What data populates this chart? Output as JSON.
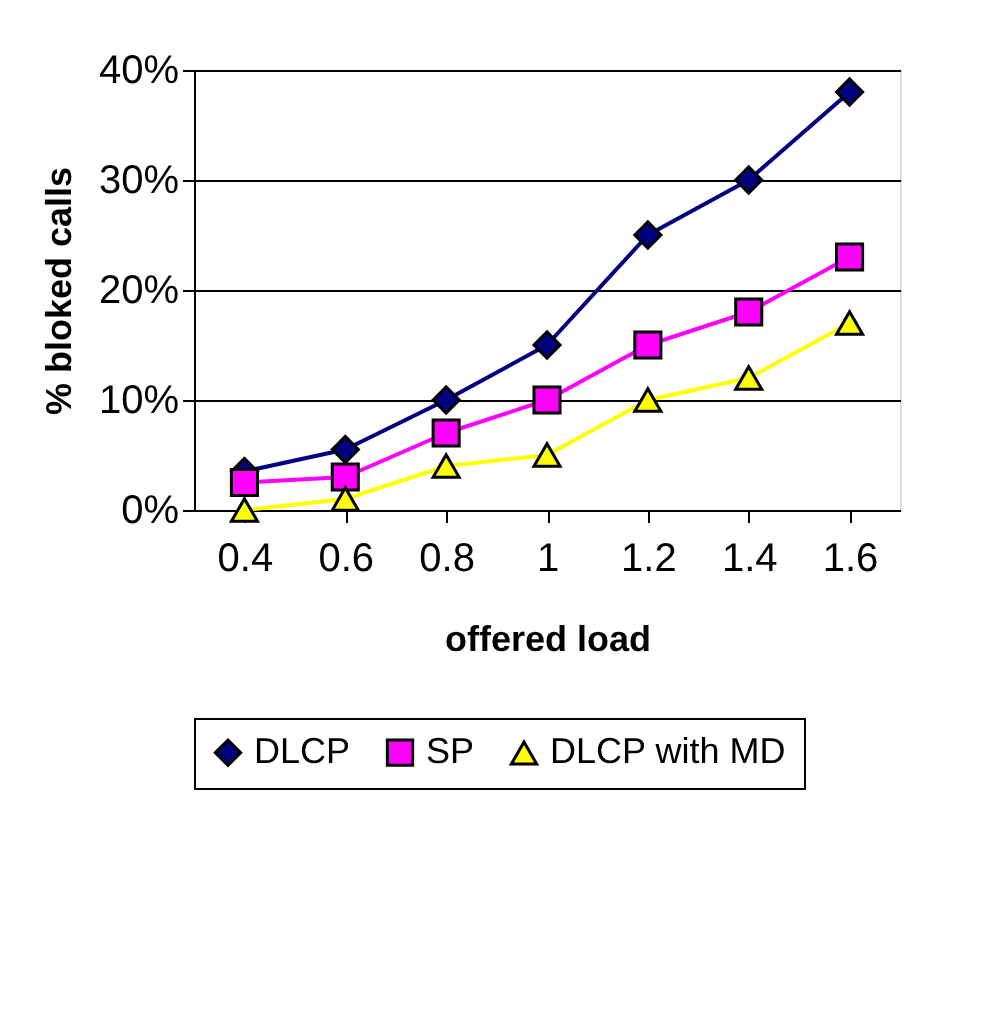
{
  "chart_data": {
    "type": "line",
    "xlabel": "offered load",
    "ylabel": "% bloked calls",
    "categories": [
      "0.4",
      "0.6",
      "0.8",
      "1",
      "1.2",
      "1.4",
      "1.6"
    ],
    "series": [
      {
        "name": "DLCP",
        "color": "#000080",
        "marker": "diamond",
        "values": [
          3.5,
          5.5,
          10,
          15,
          25,
          30,
          38
        ]
      },
      {
        "name": "SP",
        "color": "#ff00ff",
        "marker": "square",
        "values": [
          2.5,
          3,
          7,
          10,
          15,
          18,
          23
        ]
      },
      {
        "name": "DLCP with MD",
        "color": "#ffff00",
        "marker": "triangle",
        "values": [
          0,
          1,
          4,
          5,
          10,
          12,
          17
        ]
      }
    ],
    "ylim": [
      0,
      40
    ],
    "yticks": [
      {
        "value": 0,
        "label": "0%"
      },
      {
        "value": 10,
        "label": "10%"
      },
      {
        "value": 20,
        "label": "20%"
      },
      {
        "value": 30,
        "label": "30%"
      },
      {
        "value": 40,
        "label": "40%"
      }
    ],
    "grid": "y",
    "legend": "bottom"
  }
}
